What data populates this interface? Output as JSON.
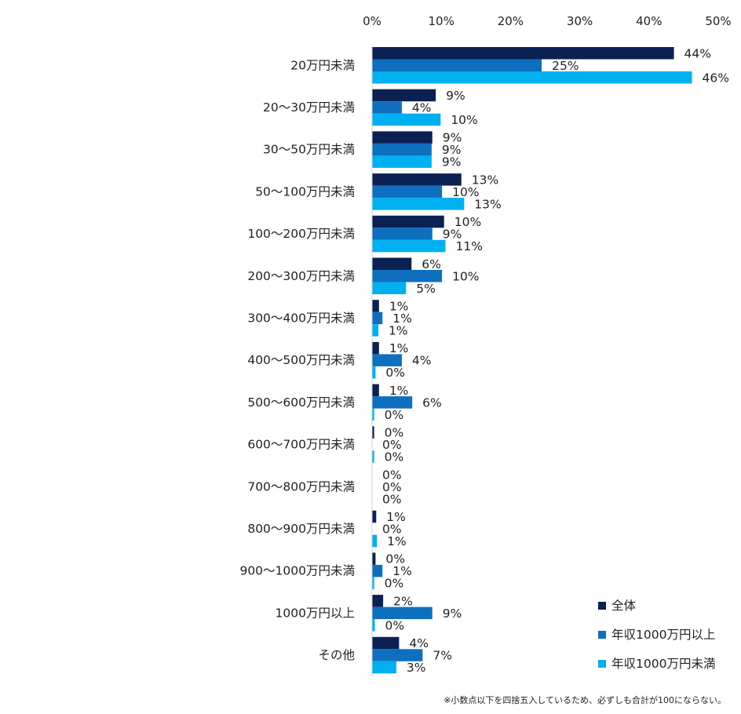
{
  "chart_data": {
    "type": "bar",
    "orientation": "horizontal",
    "xlim": [
      0,
      50
    ],
    "x_ticks": [
      "0%",
      "10%",
      "20%",
      "30%",
      "40%",
      "50%"
    ],
    "categories": [
      "20万円未満",
      "20～30万円未満",
      "30～50万円未満",
      "50～100万円未満",
      "100～200万円未満",
      "200～300万円未満",
      "300～400万円未満",
      "400～500万円未満",
      "500～600万円未満",
      "600～700万円未満",
      "700～800万円未満",
      "800～900万円未満",
      "900～1000万円未満",
      "1000万円以上",
      "その他"
    ],
    "series": [
      {
        "name": "全体",
        "color": "#0c2153",
        "values": [
          43.6,
          9.2,
          8.7,
          12.9,
          10.4,
          5.7,
          1.0,
          1.0,
          1.0,
          0.3,
          0,
          0.6,
          0.5,
          1.6,
          3.9
        ],
        "labels": [
          "44%",
          "9%",
          "9%",
          "13%",
          "10%",
          "6%",
          "1%",
          "1%",
          "1%",
          "0%",
          "0%",
          "1%",
          "0%",
          "2%",
          "4%"
        ]
      },
      {
        "name": "年収1000万円以上",
        "color": "#0f6fbf",
        "values": [
          24.5,
          4.3,
          8.6,
          10.1,
          8.7,
          10.1,
          1.5,
          4.3,
          5.8,
          0,
          0,
          0,
          1.5,
          8.7,
          7.3
        ],
        "labels": [
          "25%",
          "4%",
          "9%",
          "10%",
          "9%",
          "10%",
          "1%",
          "4%",
          "6%",
          "0%",
          "0%",
          "0%",
          "1%",
          "9%",
          "7%"
        ]
      },
      {
        "name": "年収1000万円未満",
        "color": "#00b0f0",
        "values": [
          46.2,
          9.9,
          8.6,
          13.3,
          10.6,
          4.9,
          0.9,
          0.5,
          0.3,
          0.3,
          0,
          0.7,
          0.3,
          0.4,
          3.5
        ],
        "labels": [
          "46%",
          "10%",
          "9%",
          "13%",
          "11%",
          "5%",
          "1%",
          "0%",
          "0%",
          "0%",
          "0%",
          "1%",
          "0%",
          "0%",
          "3%"
        ]
      }
    ],
    "legend_position": "bottom-right",
    "grid": false,
    "footnote": "※小数点以下を四捨五入しているため、必ずしも合計が100にならない。"
  }
}
